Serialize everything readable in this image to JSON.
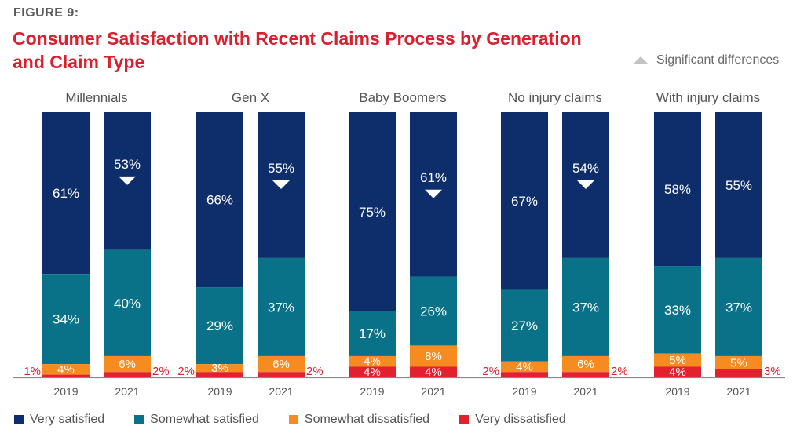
{
  "figure_label": "FIGURE 9:",
  "title": "Consumer Satisfaction with Recent Claims Process by Generation and Claim Type",
  "significance_legend": {
    "icon": "triangle-icon",
    "label": "Significant differences"
  },
  "colors": {
    "very_satisfied": "#0d2d6b",
    "somewhat_satisfied": "#0a7288",
    "somewhat_dissatisfied": "#f68b1f",
    "very_dissatisfied": "#e3202e",
    "title": "#d9202e",
    "significance_marker": "#ffffff",
    "outside_label": "#d9202e"
  },
  "legend": [
    {
      "key": "very_satisfied",
      "label": "Very satisfied"
    },
    {
      "key": "somewhat_satisfied",
      "label": "Somewhat satisfied"
    },
    {
      "key": "somewhat_dissatisfied",
      "label": "Somewhat dissatisfied"
    },
    {
      "key": "very_dissatisfied",
      "label": "Very dissatisfied"
    }
  ],
  "chart_data": {
    "type": "bar",
    "stacked": true,
    "title": "Consumer Satisfaction with Recent Claims Process by Generation and Claim Type",
    "xlabel": "",
    "ylabel": "",
    "ylim": [
      0,
      100
    ],
    "grid": false,
    "legend_position": "bottom",
    "series_order": [
      "very_dissatisfied",
      "somewhat_dissatisfied",
      "somewhat_satisfied",
      "very_satisfied"
    ],
    "series_names": {
      "very_satisfied": "Very satisfied",
      "somewhat_satisfied": "Somewhat satisfied",
      "somewhat_dissatisfied": "Somewhat dissatisfied",
      "very_dissatisfied": "Very dissatisfied"
    },
    "groups": [
      {
        "name": "Millennials",
        "bars": [
          {
            "year": "2019",
            "very_satisfied": 61,
            "somewhat_satisfied": 34,
            "somewhat_dissatisfied": 4,
            "very_dissatisfied": 1,
            "significant_decrease": false,
            "vd_label_side": "left"
          },
          {
            "year": "2021",
            "very_satisfied": 53,
            "somewhat_satisfied": 40,
            "somewhat_dissatisfied": 6,
            "very_dissatisfied": 2,
            "significant_decrease": true,
            "vd_label_side": "right"
          }
        ]
      },
      {
        "name": "Gen X",
        "bars": [
          {
            "year": "2019",
            "very_satisfied": 66,
            "somewhat_satisfied": 29,
            "somewhat_dissatisfied": 3,
            "very_dissatisfied": 2,
            "significant_decrease": false,
            "vd_label_side": "left"
          },
          {
            "year": "2021",
            "very_satisfied": 55,
            "somewhat_satisfied": 37,
            "somewhat_dissatisfied": 6,
            "very_dissatisfied": 2,
            "significant_decrease": true,
            "vd_label_side": "right"
          }
        ]
      },
      {
        "name": "Baby Boomers",
        "bars": [
          {
            "year": "2019",
            "very_satisfied": 75,
            "somewhat_satisfied": 17,
            "somewhat_dissatisfied": 4,
            "very_dissatisfied": 4,
            "significant_decrease": false,
            "vd_label_side": "inside"
          },
          {
            "year": "2021",
            "very_satisfied": 61,
            "somewhat_satisfied": 26,
            "somewhat_dissatisfied": 8,
            "very_dissatisfied": 4,
            "significant_decrease": true,
            "vd_label_side": "inside"
          }
        ]
      },
      {
        "name": "No injury claims",
        "bars": [
          {
            "year": "2019",
            "very_satisfied": 67,
            "somewhat_satisfied": 27,
            "somewhat_dissatisfied": 4,
            "very_dissatisfied": 2,
            "significant_decrease": false,
            "vd_label_side": "left"
          },
          {
            "year": "2021",
            "very_satisfied": 54,
            "somewhat_satisfied": 37,
            "somewhat_dissatisfied": 6,
            "very_dissatisfied": 2,
            "significant_decrease": true,
            "vd_label_side": "right"
          }
        ]
      },
      {
        "name": "With injury claims",
        "bars": [
          {
            "year": "2019",
            "very_satisfied": 58,
            "somewhat_satisfied": 33,
            "somewhat_dissatisfied": 5,
            "very_dissatisfied": 4,
            "significant_decrease": false,
            "vd_label_side": "inside"
          },
          {
            "year": "2021",
            "very_satisfied": 55,
            "somewhat_satisfied": 37,
            "somewhat_dissatisfied": 5,
            "very_dissatisfied": 3,
            "significant_decrease": false,
            "vd_label_side": "right"
          }
        ]
      }
    ]
  }
}
